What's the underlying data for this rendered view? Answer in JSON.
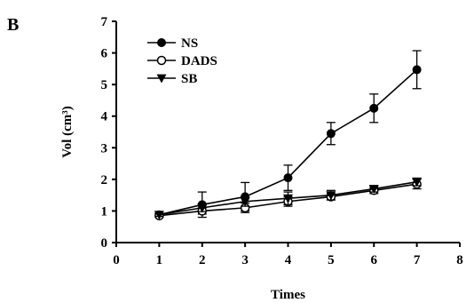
{
  "panel_label": "B",
  "chart_data": {
    "type": "line",
    "title": "",
    "xlabel": "Times",
    "ylabel": "Vol (cm³)",
    "xlim": [
      0,
      8
    ],
    "ylim": [
      0,
      7
    ],
    "x_ticks": [
      0,
      1,
      2,
      3,
      4,
      5,
      6,
      7,
      8
    ],
    "y_ticks": [
      0,
      1,
      2,
      3,
      4,
      5,
      6,
      7
    ],
    "grid": false,
    "legend_position": "top-left",
    "series": [
      {
        "name": "NS",
        "marker": "filled-circle",
        "x": [
          1,
          2,
          3,
          4,
          5,
          6,
          7
        ],
        "values": [
          0.88,
          1.2,
          1.45,
          2.05,
          3.45,
          4.25,
          5.47
        ],
        "error": [
          0.05,
          0.4,
          0.45,
          0.4,
          0.35,
          0.45,
          0.6
        ]
      },
      {
        "name": "DADS",
        "marker": "open-circle",
        "x": [
          1,
          2,
          3,
          4,
          5,
          6,
          7
        ],
        "values": [
          0.85,
          1.0,
          1.1,
          1.3,
          1.45,
          1.65,
          1.85
        ],
        "error": [
          0.05,
          0.1,
          0.15,
          0.15,
          0.1,
          0.1,
          0.15
        ]
      },
      {
        "name": "SB",
        "marker": "filled-triangle-down",
        "x": [
          1,
          2,
          3,
          4,
          5,
          6,
          7
        ],
        "values": [
          0.88,
          1.1,
          1.3,
          1.4,
          1.5,
          1.7,
          1.92
        ],
        "error": [
          0.05,
          0.12,
          0.15,
          0.2,
          0.15,
          0.1,
          0.12
        ]
      }
    ]
  }
}
